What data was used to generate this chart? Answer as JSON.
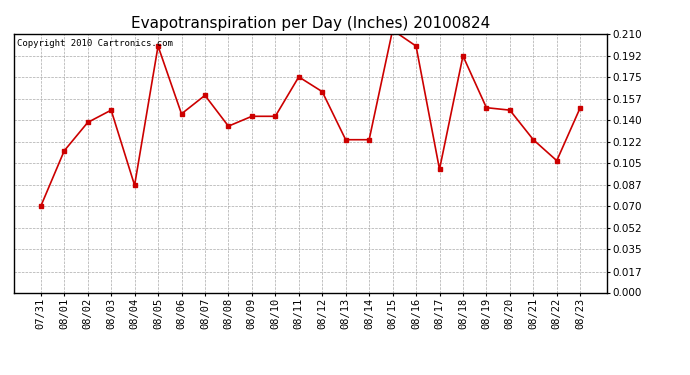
{
  "title": "Evapotranspiration per Day (Inches) 20100824",
  "copyright_text": "Copyright 2010 Cartronics.com",
  "x_labels": [
    "07/31",
    "08/01",
    "08/02",
    "08/03",
    "08/04",
    "08/05",
    "08/06",
    "08/07",
    "08/08",
    "08/09",
    "08/10",
    "08/11",
    "08/12",
    "08/13",
    "08/14",
    "08/15",
    "08/16",
    "08/17",
    "08/18",
    "08/19",
    "08/20",
    "08/21",
    "08/22",
    "08/23"
  ],
  "y_values": [
    0.07,
    0.115,
    0.138,
    0.148,
    0.087,
    0.2,
    0.145,
    0.16,
    0.135,
    0.143,
    0.143,
    0.175,
    0.163,
    0.124,
    0.124,
    0.213,
    0.2,
    0.1,
    0.192,
    0.15,
    0.148,
    0.124,
    0.107,
    0.15
  ],
  "line_color": "#cc0000",
  "marker": "s",
  "marker_size": 3,
  "background_color": "#ffffff",
  "plot_bg_color": "#ffffff",
  "grid_color": "#aaaaaa",
  "y_min": 0.0,
  "y_max": 0.21,
  "y_ticks": [
    0.0,
    0.017,
    0.035,
    0.052,
    0.07,
    0.087,
    0.105,
    0.122,
    0.14,
    0.157,
    0.175,
    0.192,
    0.21
  ],
  "title_fontsize": 11,
  "tick_fontsize": 7.5,
  "copyright_fontsize": 6.5
}
